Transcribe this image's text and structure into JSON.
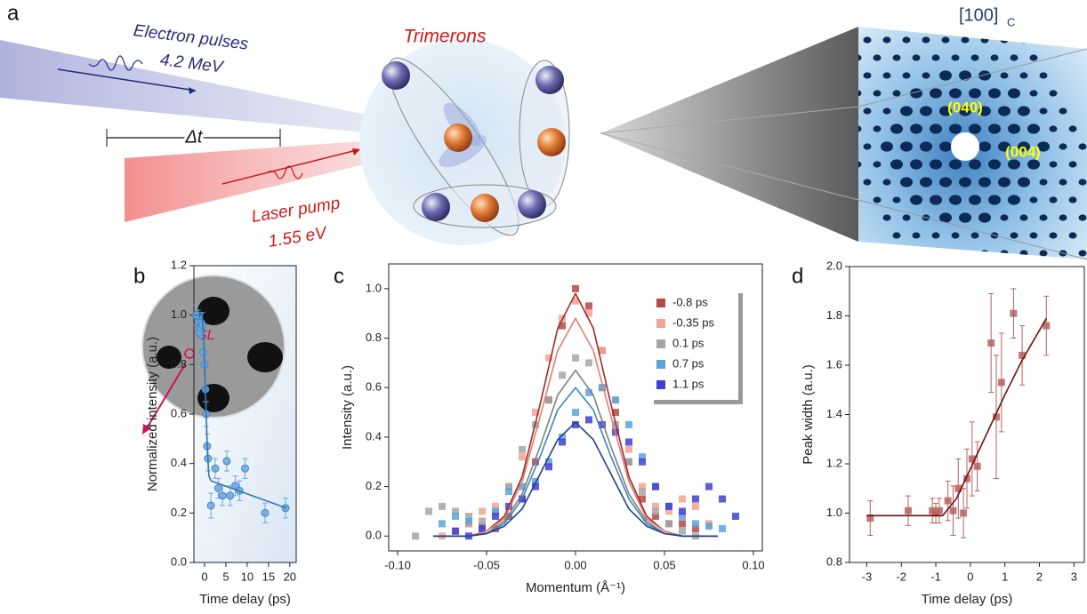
{
  "panel_labels": [
    "a",
    "b",
    "c",
    "d"
  ],
  "schematic": {
    "electron_label": "Electron pulses",
    "electron_energy": "4.2 MeV",
    "delay_label": "Δt",
    "laser_label": "Laser pump",
    "laser_energy": "1.55 eV",
    "trimerons_label": "Trimerons",
    "zone_axis": "[100]",
    "zone_axis_subscript": "C",
    "reflections": [
      "(040)",
      "(004)"
    ]
  },
  "chart_data": [
    {
      "type": "scatter",
      "marker": "circle",
      "xlabel": "Time delay (ps)",
      "ylabel": "Normalized intensity (a.u.)",
      "xlim": [
        -2.5,
        21.5
      ],
      "ylim": [
        0,
        1.2
      ],
      "xticks": [
        0,
        5,
        10,
        15,
        20
      ],
      "yticks": [
        {
          "value": 0,
          "label": "0.0"
        },
        0.2,
        0.4,
        0.6,
        0.8,
        {
          "value": 1,
          "label": "1.0"
        },
        1.2
      ],
      "inset_label": "SL",
      "series": [
        {
          "color": "#6fa8dc",
          "x": [
            -2,
            -1.5,
            -1.2,
            -1,
            -0.8,
            -0.5,
            -0.3,
            0,
            0.2,
            0.4,
            0.6,
            0.8,
            1.5,
            2.5,
            3.2,
            4.2,
            5.2,
            6,
            7.2,
            8.2,
            9.5,
            14.2,
            19
          ],
          "values": [
            1.0,
            0.97,
            0.93,
            0.95,
            0.97,
            0.96,
            0.85,
            0.8,
            0.7,
            0.6,
            0.47,
            0.42,
            0.23,
            0.38,
            0.3,
            0.27,
            0.41,
            0.27,
            0.31,
            0.29,
            0.38,
            0.2,
            0.22
          ],
          "errors": [
            0.04,
            0.05,
            0.04,
            0.05,
            0.04,
            0.05,
            0.05,
            0.05,
            0.05,
            0.05,
            0.05,
            0.05,
            0.05,
            0.04,
            0.04,
            0.04,
            0.04,
            0.04,
            0.04,
            0.04,
            0.04,
            0.04,
            0.04
          ],
          "fit": {
            "color": "#2e75b6",
            "x": [
              -2.5,
              -0.6,
              -0.2,
              0.2,
              0.6,
              1,
              1.5,
              19.2
            ],
            "values": [
              1.0,
              1.0,
              0.9,
              0.7,
              0.48,
              0.35,
              0.33,
              0.22
            ]
          }
        }
      ]
    },
    {
      "type": "scatter",
      "marker": "square",
      "xlabel": "Momentum (Å⁻¹)",
      "ylabel": "Intensity (a.u.)",
      "xlim": [
        -0.105,
        0.105
      ],
      "ylim": [
        -0.06,
        1.1
      ],
      "xticks": [
        {
          "value": -0.1,
          "label": "-0.10"
        },
        -0.05,
        {
          "value": 0,
          "label": "0.00"
        },
        0.05,
        {
          "value": 0.1,
          "label": "0.10"
        }
      ],
      "yticks": [
        {
          "value": 0,
          "label": "0.0"
        },
        0.2,
        0.4,
        0.6,
        0.8,
        {
          "value": 1,
          "label": "1.0"
        }
      ],
      "legend": "upper right",
      "series": [
        {
          "name": "-0.8 ps",
          "color": "#b5484a",
          "x": [
            -0.0675,
            -0.06,
            -0.0525,
            -0.045,
            -0.0375,
            -0.03,
            -0.0225,
            -0.015,
            -0.0075,
            0,
            0.0075,
            0.015,
            0.0225,
            0.03,
            0.0375,
            0.045,
            0.0525,
            0.06,
            0.0675
          ],
          "values": [
            0.02,
            0.05,
            0.04,
            0.03,
            0.08,
            0.15,
            0.3,
            0.55,
            0.85,
            1.0,
            0.93,
            0.75,
            0.5,
            0.3,
            0.15,
            0.08,
            0.05,
            0.05,
            0.03
          ],
          "fit": {
            "color": "#9e2a2b",
            "x": [
              -0.08,
              -0.07,
              -0.06,
              -0.05,
              -0.04,
              -0.03,
              -0.02,
              -0.01,
              0,
              0.01,
              0.02,
              0.03,
              0.04,
              0.05,
              0.06,
              0.07,
              0.08
            ],
            "values": [
              0,
              0,
              0,
              0.02,
              0.08,
              0.24,
              0.53,
              0.84,
              0.98,
              0.84,
              0.53,
              0.24,
              0.08,
              0.02,
              0,
              0,
              0
            ]
          }
        },
        {
          "name": "-0.35 ps",
          "color": "#f2a391",
          "x": [
            -0.075,
            -0.0675,
            -0.06,
            -0.0525,
            -0.045,
            -0.0375,
            -0.03,
            -0.0225,
            -0.015,
            -0.0075,
            0,
            0.0075,
            0.015,
            0.0225,
            0.03,
            0.0375,
            0.045,
            0.0525,
            0.06,
            0.0675,
            0.075
          ],
          "values": [
            0.0,
            0.02,
            0.05,
            0.1,
            0.12,
            0.2,
            0.32,
            0.5,
            0.72,
            0.88,
            0.95,
            0.9,
            0.75,
            0.55,
            0.35,
            0.2,
            0.12,
            0.1,
            0.15,
            0.12,
            0.05
          ],
          "fit": {
            "color": "#e07f6c",
            "x": [
              -0.08,
              -0.07,
              -0.06,
              -0.05,
              -0.04,
              -0.03,
              -0.02,
              -0.01,
              0,
              0.01,
              0.02,
              0.03,
              0.04,
              0.05,
              0.06,
              0.07,
              0.08
            ],
            "values": [
              0,
              0,
              0,
              0.02,
              0.07,
              0.22,
              0.48,
              0.75,
              0.88,
              0.75,
              0.48,
              0.22,
              0.07,
              0.02,
              0,
              0,
              0
            ]
          }
        },
        {
          "name": "0.1 ps",
          "color": "#a6a6a6",
          "x": [
            -0.09,
            -0.0825,
            -0.075,
            -0.0675,
            -0.06,
            -0.0525,
            -0.045,
            -0.0375,
            -0.03,
            -0.0225,
            -0.015,
            -0.0075,
            0,
            0.0075,
            0.015,
            0.0225,
            0.03,
            0.0375,
            0.045,
            0.0525,
            0.06,
            0.0675
          ],
          "values": [
            0.0,
            0.1,
            0.12,
            0.1,
            0.08,
            0.06,
            0.1,
            0.2,
            0.35,
            0.45,
            0.55,
            0.65,
            0.72,
            0.7,
            0.6,
            0.45,
            0.3,
            0.18,
            0.1,
            0.05,
            0.02,
            0.0
          ],
          "fit": {
            "color": "#7f7f7f",
            "x": [
              -0.08,
              -0.07,
              -0.06,
              -0.05,
              -0.04,
              -0.03,
              -0.02,
              -0.01,
              0,
              0.01,
              0.02,
              0.03,
              0.04,
              0.05,
              0.06,
              0.07,
              0.08
            ],
            "values": [
              0,
              0,
              0,
              0.01,
              0.06,
              0.17,
              0.36,
              0.57,
              0.67,
              0.57,
              0.36,
              0.17,
              0.06,
              0.01,
              0,
              0,
              0
            ]
          }
        },
        {
          "name": "0.7 ps",
          "color": "#5ba3d9",
          "x": [
            -0.075,
            -0.0675,
            -0.06,
            -0.0525,
            -0.045,
            -0.0375,
            -0.03,
            -0.0225,
            -0.015,
            -0.0075,
            0,
            0.0075,
            0.015,
            0.0225,
            0.03,
            0.0375,
            0.045,
            0.0525,
            0.06,
            0.0675,
            0.075,
            0.0825
          ],
          "values": [
            0.05,
            0.08,
            0.06,
            0.02,
            0.1,
            0.18,
            0.2,
            0.22,
            0.3,
            0.4,
            0.5,
            0.58,
            0.6,
            0.55,
            0.45,
            0.32,
            0.2,
            0.12,
            0.08,
            0.05,
            0.04,
            0.03
          ],
          "fit": {
            "color": "#3a86c0",
            "x": [
              -0.08,
              -0.07,
              -0.06,
              -0.05,
              -0.04,
              -0.03,
              -0.02,
              -0.01,
              0,
              0.01,
              0.02,
              0.03,
              0.04,
              0.05,
              0.06,
              0.07,
              0.08
            ],
            "values": [
              0,
              0,
              0,
              0.01,
              0.05,
              0.15,
              0.32,
              0.51,
              0.6,
              0.51,
              0.32,
              0.15,
              0.05,
              0.01,
              0,
              0,
              0
            ]
          }
        },
        {
          "name": "1.1 ps",
          "color": "#3f3fd6",
          "x": [
            -0.0675,
            -0.06,
            -0.0525,
            -0.045,
            -0.0375,
            -0.03,
            -0.0225,
            -0.015,
            -0.0075,
            0,
            0.0075,
            0.015,
            0.0225,
            0.03,
            0.0375,
            0.045,
            0.0525,
            0.06,
            0.0675,
            0.075,
            0.0825,
            0.09
          ],
          "values": [
            0.02,
            0.0,
            0.03,
            0.08,
            0.12,
            0.15,
            0.2,
            0.28,
            0.38,
            0.45,
            0.47,
            0.45,
            0.42,
            0.38,
            0.3,
            0.2,
            0.12,
            0.1,
            0.15,
            0.2,
            0.15,
            0.08
          ],
          "fit": {
            "color": "#1f3f8f",
            "x": [
              -0.08,
              -0.07,
              -0.06,
              -0.05,
              -0.04,
              -0.03,
              -0.02,
              -0.01,
              0,
              0.01,
              0.02,
              0.03,
              0.04,
              0.05,
              0.06,
              0.07,
              0.08
            ],
            "values": [
              0,
              0,
              0,
              0.01,
              0.04,
              0.11,
              0.25,
              0.39,
              0.46,
              0.39,
              0.25,
              0.11,
              0.04,
              0.01,
              0,
              0,
              0
            ]
          }
        }
      ]
    },
    {
      "type": "scatter",
      "marker": "square",
      "xlabel": "Time delay (ps)",
      "ylabel": "Peak width (a.u.)",
      "xlim": [
        -3.5,
        3.3
      ],
      "ylim": [
        0.8,
        2.0
      ],
      "xticks": [
        -3,
        -2,
        -1,
        0,
        1,
        2,
        3
      ],
      "yticks": [
        0.8,
        {
          "value": 1,
          "label": "1.0"
        },
        1.2,
        1.4,
        1.6,
        1.8,
        {
          "value": 2,
          "label": "2.0"
        }
      ],
      "series": [
        {
          "color": "#b56262",
          "x": [
            -2.9,
            -1.8,
            -1.1,
            -1.0,
            -0.9,
            -0.65,
            -0.5,
            -0.35,
            -0.2,
            -0.1,
            0.05,
            0.2,
            0.6,
            0.75,
            0.9,
            1.25,
            1.5,
            2.2
          ],
          "values": [
            0.98,
            1.01,
            1.01,
            1.0,
            1.01,
            1.05,
            1.01,
            1.1,
            1.0,
            1.14,
            1.22,
            1.19,
            1.69,
            1.39,
            1.53,
            1.81,
            1.64,
            1.76
          ],
          "errors": [
            0.07,
            0.06,
            0.05,
            0.04,
            0.05,
            0.08,
            0.1,
            0.12,
            0.1,
            0.12,
            0.15,
            0.1,
            0.2,
            0.25,
            0.2,
            0.1,
            0.12,
            0.12
          ],
          "fit": {
            "color": "#6b0f12",
            "x": [
              -3,
              -0.8,
              -0.4,
              0,
              0.5,
              1,
              1.5,
              2.2
            ],
            "values": [
              0.99,
              0.99,
              1.06,
              1.18,
              1.33,
              1.48,
              1.62,
              1.79
            ]
          }
        }
      ]
    }
  ]
}
